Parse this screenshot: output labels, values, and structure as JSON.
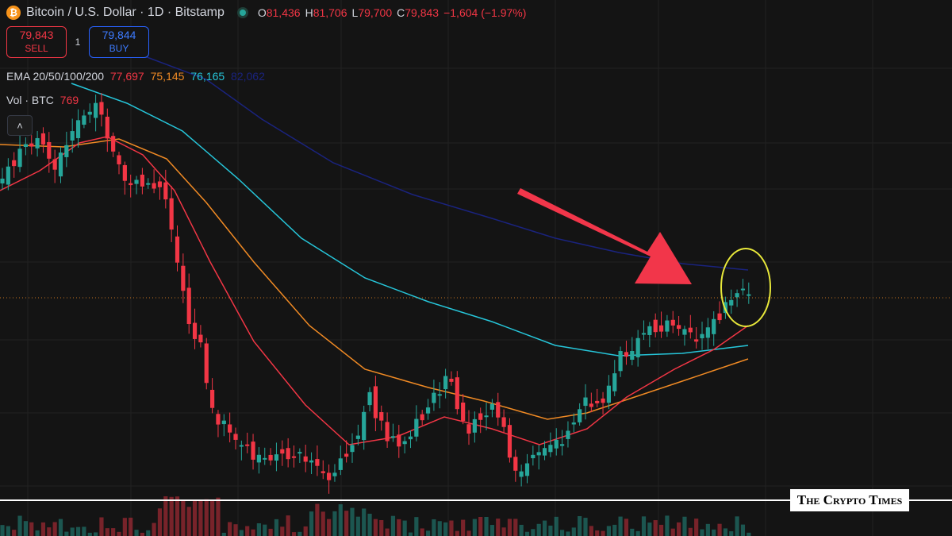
{
  "header": {
    "coin_icon": "bitcoin-icon",
    "symbol_title": "Bitcoin / U.S. Dollar · 1D · Bitstamp",
    "ohlc": {
      "o_label": "O",
      "o_value": "81,436",
      "h_label": "H",
      "h_value": "81,706",
      "l_label": "L",
      "l_value": "79,700",
      "c_label": "C",
      "c_value": "79,843",
      "change": "−1,604 (−1.97%)"
    }
  },
  "trade": {
    "sell_price": "79,843",
    "sell_label": "SELL",
    "spread": "1",
    "buy_price": "79,844",
    "buy_label": "BUY"
  },
  "indicators": {
    "ema_label": "EMA 20/50/100/200",
    "ema20": "77,697",
    "ema50": "75,145",
    "ema100": "76,165",
    "ema200": "82,062",
    "vol_label": "Vol · BTC",
    "vol_value": "769",
    "collapse_icon": "chevron-up-icon"
  },
  "watermark": "The Crypto Times",
  "colors": {
    "up": "#26a69a",
    "down": "#f23645",
    "ema20": "#f23645",
    "ema50": "#f08a24",
    "ema100": "#26c6da",
    "ema200": "#1a237e",
    "arrow": "#f23645",
    "highlight_circle": "#e8e83a"
  },
  "chart_data": {
    "type": "candlestick",
    "series": [
      {
        "name": "EMA 20",
        "last": 77697
      },
      {
        "name": "EMA 50",
        "last": 75145
      },
      {
        "name": "EMA 100",
        "last": 76165
      },
      {
        "name": "EMA 200",
        "last": 82062
      }
    ],
    "last_close": 79843,
    "annotations": [
      "arrow pointing to latest candles",
      "yellow circle around latest candles"
    ],
    "grid": true
  }
}
